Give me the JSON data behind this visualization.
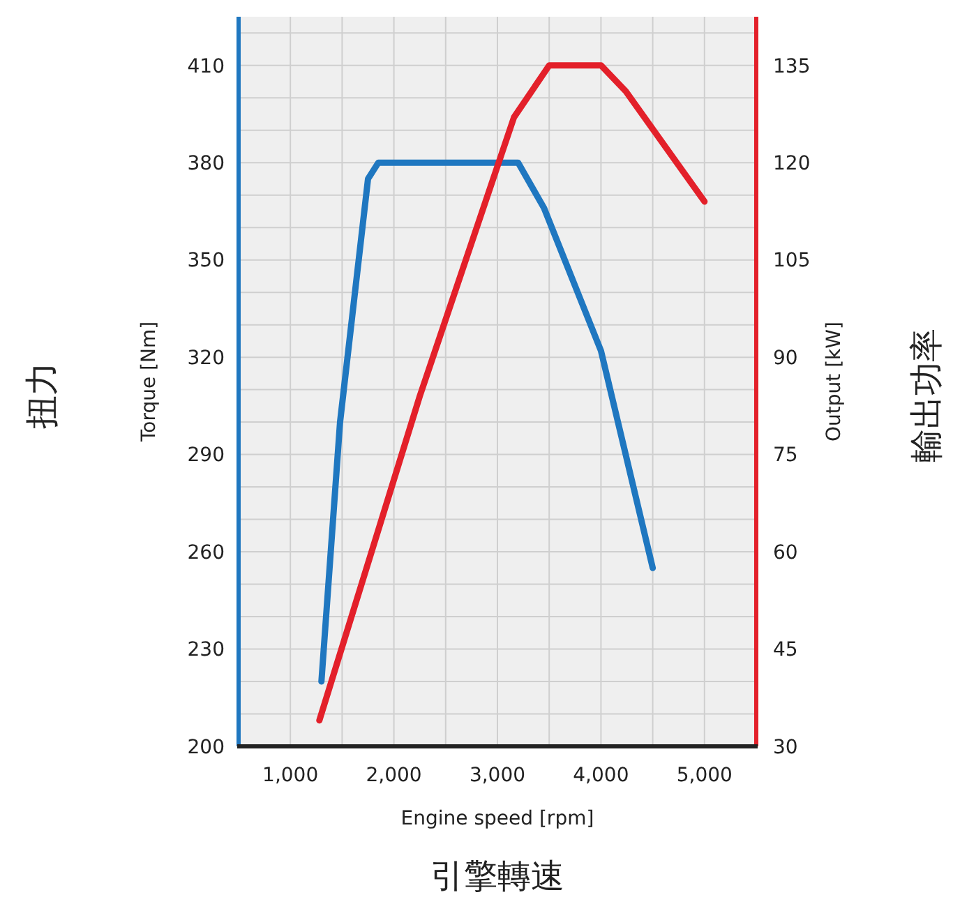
{
  "chart_data": {
    "type": "line",
    "xlabel": "Engine speed [rpm]",
    "ylabel": "Torque [Nm]",
    "y2label": "Output [kW]",
    "annotations": [
      "扭力",
      "引擎轉速",
      "輸出功率"
    ],
    "xlim": [
      500,
      5500
    ],
    "xticks": [
      {
        "value": 1000,
        "label": "1,000"
      },
      {
        "value": 1500,
        "label": null
      },
      {
        "value": 2000,
        "label": "2,000"
      },
      {
        "value": 2500,
        "label": null
      },
      {
        "value": 3000,
        "label": "3,000"
      },
      {
        "value": 3500,
        "label": null
      },
      {
        "value": 4000,
        "label": "4,000"
      },
      {
        "value": 4500,
        "label": null
      },
      {
        "value": 5000,
        "label": "5,000"
      }
    ],
    "ylim": [
      200,
      425
    ],
    "yticks": [
      200,
      {
        "value": 210,
        "label": null
      },
      {
        "value": 220,
        "label": null
      },
      230,
      {
        "value": 240,
        "label": null
      },
      {
        "value": 250,
        "label": null
      },
      260,
      {
        "value": 270,
        "label": null
      },
      {
        "value": 280,
        "label": null
      },
      290,
      {
        "value": 300,
        "label": null
      },
      {
        "value": 310,
        "label": null
      },
      320,
      {
        "value": 330,
        "label": null
      },
      {
        "value": 340,
        "label": null
      },
      350,
      {
        "value": 360,
        "label": null
      },
      {
        "value": 370,
        "label": null
      },
      380,
      {
        "value": 390,
        "label": null
      },
      {
        "value": 400,
        "label": null
      },
      410,
      {
        "value": 420,
        "label": null
      }
    ],
    "y2lim": [
      30,
      142.5
    ],
    "y2ticks": [
      30,
      45,
      60,
      75,
      90,
      105,
      120,
      135
    ],
    "grid": true,
    "marker": "none",
    "line_style": "solid",
    "series": [
      {
        "color": "#1f77c0",
        "x": [
          1300,
          1480,
          1750,
          1850,
          3200,
          3450,
          4000,
          4500
        ],
        "values": [
          220,
          300,
          375,
          380,
          380,
          366,
          322,
          255
        ]
      },
      {
        "color": "#e3202a",
        "axis": "y2",
        "x": [
          1280,
          2250,
          3160,
          3500,
          4000,
          4240,
          5000
        ],
        "values": [
          34,
          84,
          127,
          135,
          135,
          131,
          114
        ]
      }
    ]
  }
}
